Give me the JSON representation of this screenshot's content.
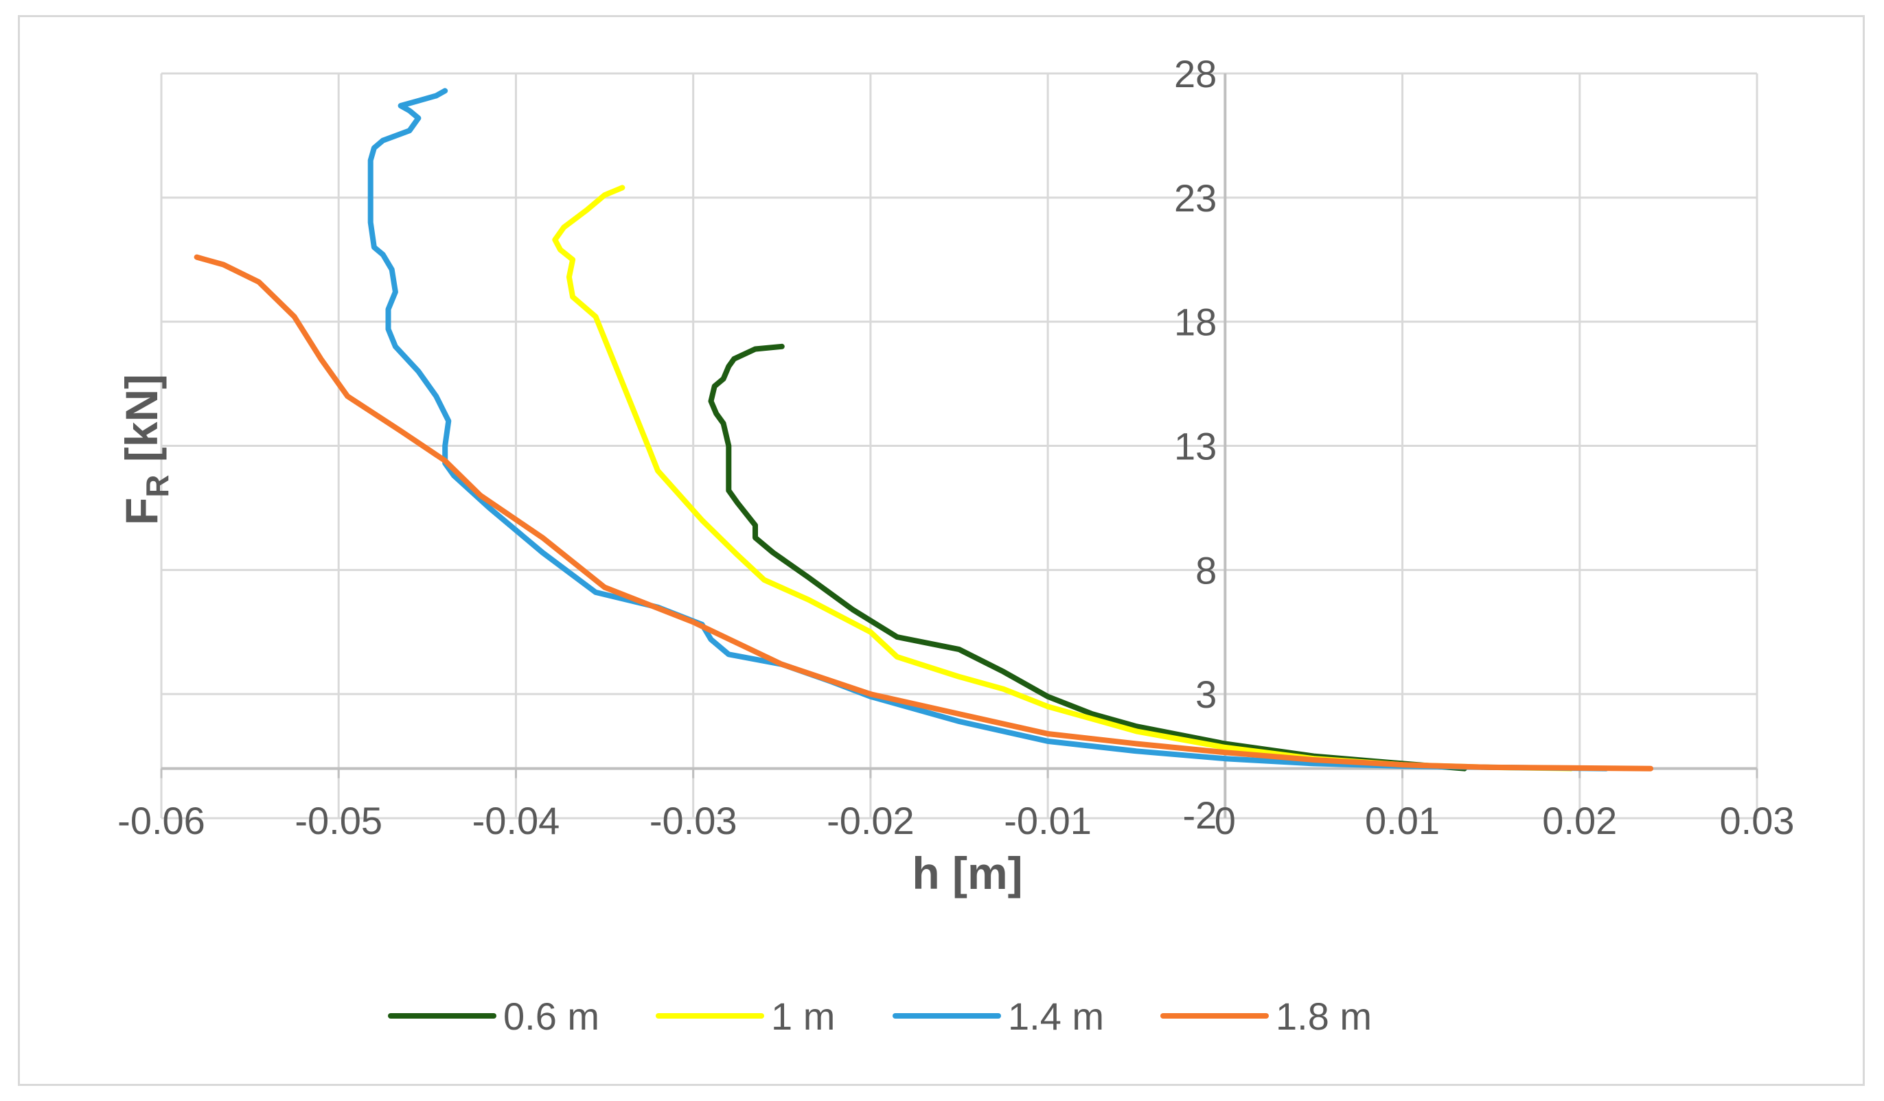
{
  "chart_data": {
    "type": "line",
    "title": "",
    "xlabel": "h [m]",
    "ylabel_main": "F",
    "ylabel_sub": "R",
    "ylabel_unit": " [kN]",
    "xlim": [
      -0.06,
      0.03
    ],
    "ylim": [
      -2,
      28
    ],
    "x_ticks": [
      -0.06,
      -0.05,
      -0.04,
      -0.03,
      -0.02,
      -0.01,
      0,
      0.01,
      0.02,
      0.03
    ],
    "x_tick_labels": [
      "-0.06",
      "-0.05",
      "-0.04",
      "-0.03",
      "-0.02",
      "-0.01",
      "0",
      "0.01",
      "0.02",
      "0.03"
    ],
    "y_ticks": [
      -2,
      3,
      8,
      13,
      18,
      23,
      28
    ],
    "y_tick_labels": [
      "-2",
      "3",
      "8",
      "13",
      "18",
      "23",
      "28"
    ],
    "grid": true,
    "legend_position": "bottom",
    "series": [
      {
        "name": "0.6 m",
        "color": "#1e5b12",
        "points": [
          [
            0.0135,
            0
          ],
          [
            0.01,
            0.2
          ],
          [
            0.005,
            0.5
          ],
          [
            0,
            1.0
          ],
          [
            -0.005,
            1.7
          ],
          [
            -0.0075,
            2.2
          ],
          [
            -0.01,
            2.9
          ],
          [
            -0.0125,
            3.9
          ],
          [
            -0.015,
            4.8
          ],
          [
            -0.0185,
            5.3
          ],
          [
            -0.021,
            6.4
          ],
          [
            -0.0235,
            7.7
          ],
          [
            -0.0255,
            8.7
          ],
          [
            -0.0265,
            9.3
          ],
          [
            -0.0265,
            9.8
          ],
          [
            -0.0275,
            10.7
          ],
          [
            -0.028,
            11.2
          ],
          [
            -0.028,
            13.0
          ],
          [
            -0.0283,
            13.9
          ],
          [
            -0.0287,
            14.3
          ],
          [
            -0.029,
            14.8
          ],
          [
            -0.0288,
            15.4
          ],
          [
            -0.0283,
            15.7
          ],
          [
            -0.028,
            16.2
          ],
          [
            -0.0277,
            16.5
          ],
          [
            -0.0265,
            16.9
          ],
          [
            -0.025,
            17.0
          ]
        ]
      },
      {
        "name": "1 m",
        "color": "#ffff00",
        "points": [
          [
            0.0195,
            0
          ],
          [
            0.015,
            0.05
          ],
          [
            0.01,
            0.15
          ],
          [
            0.005,
            0.4
          ],
          [
            0,
            0.85
          ],
          [
            -0.005,
            1.5
          ],
          [
            -0.0075,
            2.0
          ],
          [
            -0.01,
            2.5
          ],
          [
            -0.0125,
            3.2
          ],
          [
            -0.015,
            3.7
          ],
          [
            -0.0185,
            4.5
          ],
          [
            -0.02,
            5.5
          ],
          [
            -0.0235,
            6.8
          ],
          [
            -0.026,
            7.6
          ],
          [
            -0.0275,
            8.6
          ],
          [
            -0.0295,
            10.0
          ],
          [
            -0.031,
            11.2
          ],
          [
            -0.032,
            12.0
          ],
          [
            -0.0325,
            12.9
          ],
          [
            -0.0355,
            18.2
          ],
          [
            -0.0368,
            19.0
          ],
          [
            -0.037,
            19.8
          ],
          [
            -0.0368,
            20.5
          ],
          [
            -0.0375,
            20.9
          ],
          [
            -0.0378,
            21.3
          ],
          [
            -0.0373,
            21.8
          ],
          [
            -0.036,
            22.5
          ],
          [
            -0.035,
            23.1
          ],
          [
            -0.034,
            23.4
          ]
        ]
      },
      {
        "name": "1.4 m",
        "color": "#2e9ddb",
        "points": [
          [
            0.0215,
            0
          ],
          [
            0.015,
            0.05
          ],
          [
            0.01,
            0.1
          ],
          [
            0.005,
            0.2
          ],
          [
            0,
            0.4
          ],
          [
            -0.005,
            0.7
          ],
          [
            -0.01,
            1.1
          ],
          [
            -0.015,
            1.9
          ],
          [
            -0.02,
            2.9
          ],
          [
            -0.0222,
            3.5
          ],
          [
            -0.025,
            4.2
          ],
          [
            -0.028,
            4.6
          ],
          [
            -0.029,
            5.2
          ],
          [
            -0.0295,
            5.8
          ],
          [
            -0.032,
            6.5
          ],
          [
            -0.0355,
            7.1
          ],
          [
            -0.0385,
            8.7
          ],
          [
            -0.0415,
            10.5
          ],
          [
            -0.0435,
            11.8
          ],
          [
            -0.044,
            12.3
          ],
          [
            -0.044,
            13.0
          ],
          [
            -0.0438,
            14.0
          ],
          [
            -0.0445,
            15.0
          ],
          [
            -0.0455,
            16.0
          ],
          [
            -0.0468,
            17.0
          ],
          [
            -0.0472,
            17.7
          ],
          [
            -0.0472,
            18.5
          ],
          [
            -0.0468,
            19.2
          ],
          [
            -0.047,
            20.1
          ],
          [
            -0.0475,
            20.7
          ],
          [
            -0.048,
            21.0
          ],
          [
            -0.0482,
            22.0
          ],
          [
            -0.0482,
            23.0
          ],
          [
            -0.0482,
            24.5
          ],
          [
            -0.048,
            25.0
          ],
          [
            -0.0475,
            25.3
          ],
          [
            -0.046,
            25.7
          ],
          [
            -0.0455,
            26.2
          ],
          [
            -0.046,
            26.5
          ],
          [
            -0.0465,
            26.7
          ],
          [
            -0.0455,
            26.9
          ],
          [
            -0.0445,
            27.1
          ],
          [
            -0.044,
            27.3
          ]
        ]
      },
      {
        "name": "1.8 m",
        "color": "#f5782b",
        "points": [
          [
            0.024,
            0
          ],
          [
            0.02,
            0.02
          ],
          [
            0.015,
            0.05
          ],
          [
            0.01,
            0.15
          ],
          [
            0.005,
            0.35
          ],
          [
            0,
            0.65
          ],
          [
            -0.005,
            1.0
          ],
          [
            -0.01,
            1.4
          ],
          [
            -0.015,
            2.2
          ],
          [
            -0.02,
            3.0
          ],
          [
            -0.025,
            4.2
          ],
          [
            -0.03,
            5.9
          ],
          [
            -0.035,
            7.3
          ],
          [
            -0.0385,
            9.3
          ],
          [
            -0.042,
            11.0
          ],
          [
            -0.044,
            12.4
          ],
          [
            -0.0465,
            13.6
          ],
          [
            -0.0495,
            15.0
          ],
          [
            -0.051,
            16.5
          ],
          [
            -0.0525,
            18.2
          ],
          [
            -0.0545,
            19.6
          ],
          [
            -0.0565,
            20.3
          ],
          [
            -0.0575,
            20.5
          ],
          [
            -0.058,
            20.6
          ]
        ]
      }
    ]
  }
}
